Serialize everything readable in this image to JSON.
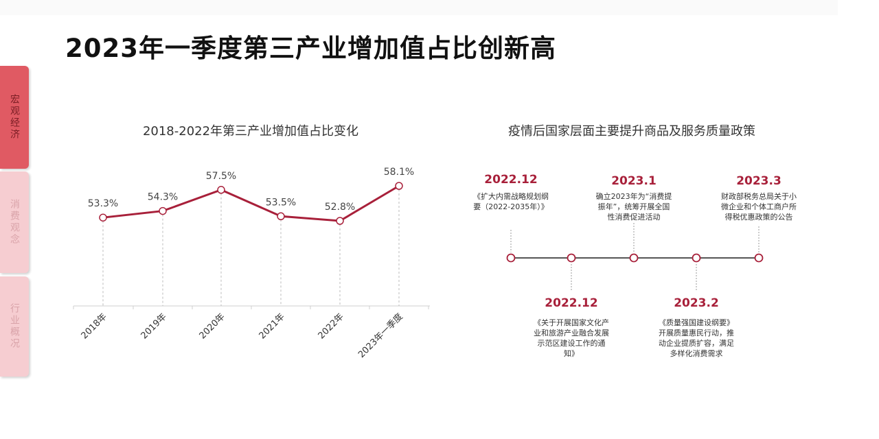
{
  "page": {
    "title": "2023年一季度第三产业增加值占比创新高"
  },
  "sidebar": {
    "tabs": [
      {
        "label": "宏观经济",
        "active": true
      },
      {
        "label": "消费观念",
        "active": false
      },
      {
        "label": "行业概况",
        "active": false
      }
    ]
  },
  "colors": {
    "accent": "#a8203a",
    "line": "#a8203a",
    "tab_active": "#e05a63",
    "tab_inactive": "#f6cdd1"
  },
  "chart_data": {
    "type": "line",
    "title": "2018-2022年第三产业增加值占比变化",
    "categories": [
      "2018年",
      "2019年",
      "2020年",
      "2021年",
      "2022年",
      "2023年一季度"
    ],
    "values": [
      53.3,
      54.3,
      57.5,
      53.5,
      52.8,
      58.1
    ],
    "value_labels": [
      "53.3%",
      "54.3%",
      "57.5%",
      "53.5%",
      "52.8%",
      "58.1%"
    ],
    "xlabel": "",
    "ylabel": "",
    "unit": "%",
    "grid": false,
    "legend": "none"
  },
  "timeline": {
    "title": "疫情后国家层面主要提升商品及服务质量政策",
    "events": [
      {
        "date": "2022.12",
        "position": "above",
        "desc": "《扩大内需战略规划纲要（2022-2035年）》"
      },
      {
        "date": "2022.12",
        "position": "below",
        "desc": "《关于开展国家文化产业和旅游产业融合发展示范区建设工作的通知》"
      },
      {
        "date": "2023.1",
        "position": "above",
        "desc": "确立2023年为“消费提振年”，统筹开展全国性消费促进活动"
      },
      {
        "date": "2023.2",
        "position": "below",
        "desc": "《质量强国建设纲要》开展质量惠民行动，推动企业提质扩容，满足多样化消费需求"
      },
      {
        "date": "2023.3",
        "position": "above",
        "desc": "财政部税务总局关于小微企业和个体工商户所得税优惠政策的公告"
      }
    ]
  }
}
